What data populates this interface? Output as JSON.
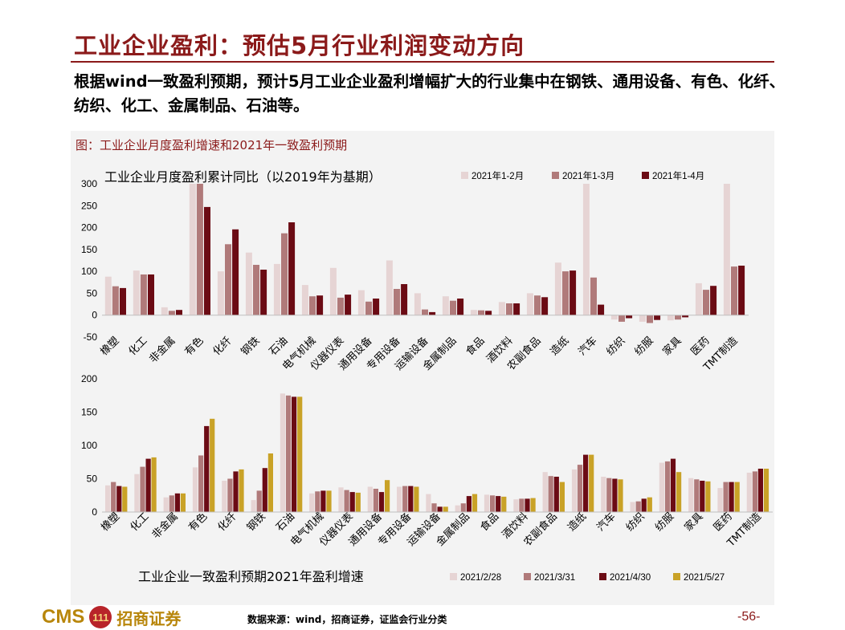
{
  "page": {
    "title": "工业企业盈利：预估5月行业利润变动方向",
    "summary": "根据wind一致盈利预期，预计5月工业企业盈利增幅扩大的行业集中在钢铁、通用设备、有色、化纤、纺织、化工、金属制品、石油等。",
    "figure_caption": "图：工业企业月度盈利增速和2021年一致盈利预期",
    "source": "数据来源：wind，招商证券，证监会行业分类",
    "page_number": "-56-",
    "brand": {
      "cms": "CMS",
      "badge": "111",
      "name_cn": "招商证券"
    }
  },
  "colors": {
    "accent": "#8b1a1a",
    "series_light": "#e6d4d4",
    "series_mid": "#b07a7a",
    "series_dark": "#6b0b14",
    "series_gold": "#c9a227"
  },
  "chart_data": [
    {
      "type": "bar",
      "title": "工业企业月度盈利累计同比（以2019年为基期）",
      "ylim": [
        -50,
        300
      ],
      "yticks": [
        -50,
        0,
        50,
        100,
        150,
        200,
        250,
        300
      ],
      "legend_position": "top-right",
      "grid": false,
      "categories": [
        "橡塑",
        "化工",
        "非金属",
        "有色",
        "化纤",
        "钢铁",
        "石油",
        "电气机械",
        "仪器仪表",
        "通用设备",
        "专用设备",
        "运输设备",
        "金属制品",
        "食品",
        "酒饮料",
        "农副食品",
        "造纸",
        "汽车",
        "纺织",
        "纺服",
        "家具",
        "医药",
        "TMT制造"
      ],
      "series": [
        {
          "name": "2021年1-2月",
          "color": "#e6d4d4",
          "values": [
            88,
            102,
            18,
            300,
            100,
            143,
            117,
            69,
            108,
            57,
            125,
            50,
            43,
            12,
            30,
            50,
            120,
            300,
            -10,
            -15,
            -12,
            73,
            300
          ]
        },
        {
          "name": "2021年1-3月",
          "color": "#b07a7a",
          "values": [
            66,
            93,
            10,
            300,
            162,
            115,
            187,
            43,
            40,
            31,
            60,
            13,
            33,
            11,
            27,
            45,
            100,
            86,
            -15,
            -18,
            -10,
            58,
            111
          ]
        },
        {
          "name": "2021年1-4月",
          "color": "#6b0b14",
          "values": [
            62,
            93,
            12,
            247,
            196,
            104,
            212,
            45,
            47,
            38,
            71,
            7,
            38,
            10,
            27,
            41,
            102,
            24,
            -7,
            -11,
            -5,
            67,
            113
          ]
        }
      ]
    },
    {
      "type": "bar",
      "title": "工业企业一致盈利预期2021年盈利增速",
      "ylim": [
        0,
        200
      ],
      "yticks": [
        0,
        50,
        100,
        150,
        200
      ],
      "legend_position": "bottom-right",
      "grid": false,
      "categories": [
        "橡塑",
        "化工",
        "非金属",
        "有色",
        "化纤",
        "钢铁",
        "石油",
        "电气机械",
        "仪器仪表",
        "通用设备",
        "专用设备",
        "运输设备",
        "金属制品",
        "食品",
        "酒饮料",
        "农副食品",
        "造纸",
        "汽车",
        "纺织",
        "纺服",
        "家具",
        "医药",
        "TMT制造"
      ],
      "series": [
        {
          "name": "2021/2/28",
          "color": "#e6d4d4",
          "values": [
            40,
            57,
            22,
            67,
            47,
            18,
            178,
            28,
            37,
            38,
            38,
            27,
            10,
            26,
            19,
            60,
            64,
            53,
            15,
            74,
            51,
            36,
            59
          ]
        },
        {
          "name": "2021/3/31",
          "color": "#b07a7a",
          "values": [
            45,
            68,
            25,
            85,
            50,
            32,
            175,
            31,
            33,
            35,
            39,
            13,
            13,
            25,
            20,
            54,
            71,
            51,
            16,
            76,
            49,
            45,
            61
          ]
        },
        {
          "name": "2021/4/30",
          "color": "#6b0b14",
          "values": [
            39,
            80,
            28,
            129,
            61,
            66,
            173,
            32,
            30,
            30,
            39,
            8,
            24,
            24,
            20,
            53,
            86,
            50,
            20,
            80,
            47,
            45,
            65
          ]
        },
        {
          "name": "2021/5/27",
          "color": "#c9a227",
          "values": [
            38,
            82,
            28,
            140,
            64,
            88,
            173,
            32,
            29,
            48,
            38,
            8,
            27,
            23,
            21,
            45,
            86,
            49,
            22,
            60,
            46,
            45,
            65
          ]
        }
      ]
    }
  ]
}
